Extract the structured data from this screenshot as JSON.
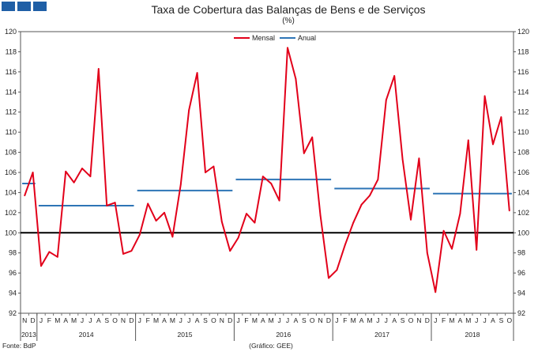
{
  "header": {
    "logo_squares": 3,
    "logo_color": "#1f5fa6"
  },
  "chart_data": {
    "type": "line",
    "title": "Taxa de Cobertura das Balanças de Bens e de Serviços",
    "subtitle": "(%)",
    "ylim": [
      92,
      120
    ],
    "yticks": [
      92,
      94,
      96,
      98,
      100,
      102,
      104,
      106,
      108,
      110,
      112,
      114,
      116,
      118,
      120
    ],
    "reference_line": 100,
    "grid": false,
    "legend_position": "top-center",
    "months": [
      "N",
      "D",
      "J",
      "F",
      "M",
      "A",
      "M",
      "J",
      "J",
      "A",
      "S",
      "O",
      "N",
      "D",
      "J",
      "F",
      "M",
      "A",
      "M",
      "J",
      "J",
      "A",
      "S",
      "O",
      "N",
      "D",
      "J",
      "F",
      "M",
      "A",
      "M",
      "J",
      "J",
      "A",
      "S",
      "O",
      "N",
      "D",
      "J",
      "F",
      "M",
      "A",
      "M",
      "J",
      "J",
      "A",
      "S",
      "O",
      "N",
      "D",
      "J",
      "F",
      "M",
      "A",
      "M",
      "J",
      "J",
      "A",
      "S",
      "O"
    ],
    "years": [
      {
        "label": "2013",
        "start": 0,
        "count": 2
      },
      {
        "label": "2014",
        "start": 2,
        "count": 12
      },
      {
        "label": "2015",
        "start": 14,
        "count": 12
      },
      {
        "label": "2016",
        "start": 26,
        "count": 12
      },
      {
        "label": "2017",
        "start": 38,
        "count": 12
      },
      {
        "label": "2018",
        "start": 50,
        "count": 10
      }
    ],
    "series": [
      {
        "name": "Mensal",
        "color": "#e2001a",
        "values": [
          103.7,
          106.0,
          96.7,
          98.1,
          97.6,
          106.1,
          105.0,
          106.4,
          105.6,
          116.3,
          102.7,
          103.0,
          97.9,
          98.2,
          99.8,
          102.9,
          101.2,
          102.0,
          99.6,
          104.8,
          112.2,
          115.9,
          106.0,
          106.6,
          101.1,
          98.2,
          99.5,
          101.9,
          101.0,
          105.6,
          104.9,
          103.2,
          118.4,
          115.3,
          107.9,
          109.5,
          101.7,
          95.5,
          96.3,
          98.8,
          101.0,
          102.8,
          103.7,
          105.3,
          113.2,
          115.6,
          107.3,
          101.3,
          107.4,
          98.0,
          94.1,
          100.2,
          98.4,
          101.9,
          109.2,
          98.3,
          113.6,
          108.8,
          111.5,
          102.2
        ]
      },
      {
        "name": "Anual",
        "color": "#2e75b6",
        "segments": [
          {
            "start": 0,
            "end": 1,
            "value": 104.9
          },
          {
            "start": 2,
            "end": 13,
            "value": 102.7
          },
          {
            "start": 14,
            "end": 25,
            "value": 104.2
          },
          {
            "start": 26,
            "end": 37,
            "value": 105.3
          },
          {
            "start": 38,
            "end": 49,
            "value": 104.4
          },
          {
            "start": 50,
            "end": 59,
            "value": 103.9
          }
        ]
      }
    ]
  },
  "footer": {
    "source": "Fonte: BdP",
    "credit": "(Gráfico: GEE)"
  }
}
